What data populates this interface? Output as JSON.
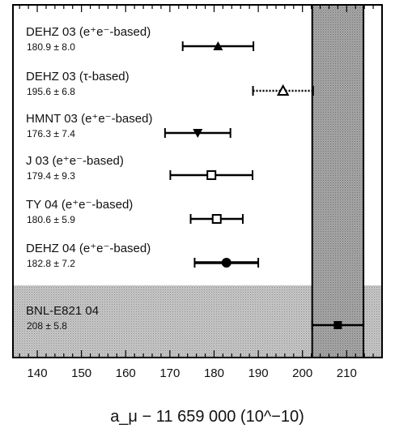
{
  "chart_data": {
    "type": "scatter",
    "xlabel": "a_μ − 11 659 000   (10^−10)",
    "xlim": [
      134.5,
      218
    ],
    "xticks": [
      140,
      150,
      160,
      170,
      180,
      190,
      200,
      210
    ],
    "band": {
      "label": "BNL-E821 04",
      "center": 208,
      "low": 202.2,
      "high": 213.8
    },
    "points": [
      {
        "label": "DEHZ 03 (e⁺e⁻-based)",
        "value_text": "180.9 ± 8.0",
        "x": 180.9,
        "err": 8.0,
        "marker": "triangle-up",
        "line": "solid"
      },
      {
        "label": "DEHZ 03 (τ-based)",
        "value_text": "195.6 ± 6.8",
        "x": 195.6,
        "err": 6.8,
        "marker": "triangle-up-open",
        "line": "dotted"
      },
      {
        "label": "HMNT 03 (e⁺e⁻-based)",
        "value_text": "176.3 ± 7.4",
        "x": 176.3,
        "err": 7.4,
        "marker": "triangle-down",
        "line": "solid"
      },
      {
        "label": "J 03 (e⁺e⁻-based)",
        "value_text": "179.4 ± 9.3",
        "x": 179.4,
        "err": 9.3,
        "marker": "square-open",
        "line": "solid"
      },
      {
        "label": "TY 04 (e⁺e⁻-based)",
        "value_text": "180.6 ± 5.9",
        "x": 180.6,
        "err": 5.9,
        "marker": "square-open",
        "line": "solid"
      },
      {
        "label": "DEHZ 04 (e⁺e⁻-based)",
        "value_text": "182.8 ± 7.2",
        "x": 182.8,
        "err": 7.2,
        "marker": "circle",
        "line": "thick"
      },
      {
        "label": "BNL-E821 04",
        "value_text": "208 ± 5.8",
        "x": 208,
        "err": 5.8,
        "marker": "square",
        "line": "solid"
      }
    ]
  }
}
